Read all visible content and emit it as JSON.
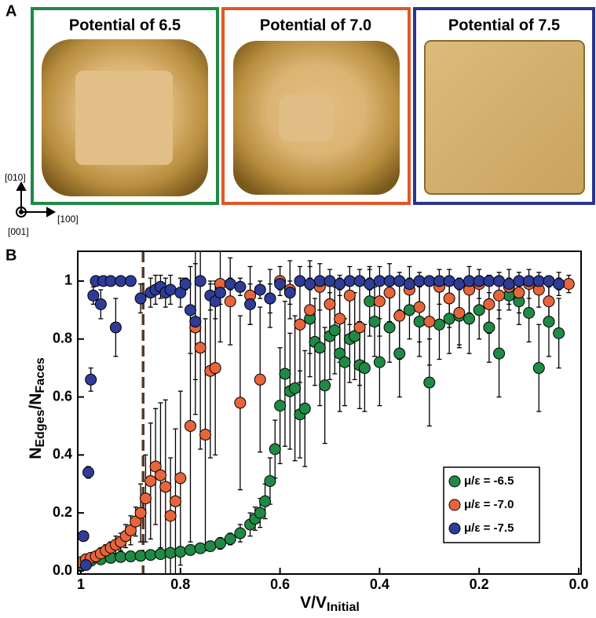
{
  "panel_a": {
    "label": "A",
    "images": [
      {
        "title": "Potential of 6.5"
      },
      {
        "title": "Potential of 7.0"
      },
      {
        "title": "Potential of 7.5"
      }
    ],
    "axis_labels": {
      "up": "[010]",
      "right": "[100]",
      "out": "[001]"
    }
  },
  "panel_b": {
    "label": "B"
  },
  "chart_data": {
    "type": "scatter",
    "xlabel": [
      "V/V",
      "Initial"
    ],
    "ylabel": [
      "N",
      "Edges",
      "/N",
      "Faces"
    ],
    "xlim": [
      1.0,
      0.0
    ],
    "ylim": [
      0,
      1.1
    ],
    "xticks": [
      1,
      0.8,
      0.6,
      0.4,
      0.2,
      {
        "value": 0,
        "label": "0.0"
      }
    ],
    "yticks": [
      {
        "value": 0,
        "label": "0.0"
      },
      0.2,
      0.4,
      0.6,
      0.8,
      1
    ],
    "vline": 0.875,
    "vline_color": "#5a3a28",
    "legend": "lower right",
    "series": [
      {
        "name": "μ/ε = -6.5",
        "color": "#1f8a45",
        "x": [
          1.0,
          0.98,
          0.96,
          0.94,
          0.92,
          0.9,
          0.88,
          0.86,
          0.84,
          0.82,
          0.8,
          0.78,
          0.76,
          0.74,
          0.72,
          0.7,
          0.68,
          0.66,
          0.65,
          0.64,
          0.63,
          0.62,
          0.61,
          0.6,
          0.59,
          0.58,
          0.57,
          0.56,
          0.55,
          0.54,
          0.53,
          0.52,
          0.51,
          0.5,
          0.49,
          0.48,
          0.47,
          0.46,
          0.45,
          0.44,
          0.43,
          0.42,
          0.41,
          0.4,
          0.38,
          0.36,
          0.34,
          0.32,
          0.3,
          0.28,
          0.26,
          0.24,
          0.22,
          0.2,
          0.18,
          0.16,
          0.14,
          0.12,
          0.1,
          0.08,
          0.06,
          0.04
        ],
        "values": [
          0.02,
          0.035,
          0.04,
          0.045,
          0.048,
          0.05,
          0.052,
          0.055,
          0.058,
          0.062,
          0.066,
          0.072,
          0.078,
          0.085,
          0.095,
          0.11,
          0.13,
          0.16,
          0.18,
          0.2,
          0.24,
          0.31,
          0.42,
          0.57,
          0.68,
          0.62,
          0.63,
          0.54,
          0.56,
          0.87,
          0.79,
          0.77,
          0.64,
          0.81,
          0.83,
          0.75,
          0.72,
          0.8,
          0.81,
          0.71,
          0.7,
          0.93,
          0.86,
          0.72,
          0.84,
          0.75,
          0.9,
          0.86,
          0.65,
          0.85,
          0.87,
          0.88,
          0.87,
          0.9,
          0.84,
          0.75,
          0.95,
          0.93,
          0.89,
          0.7,
          0.86,
          0.82
        ],
        "errors": [
          0.01,
          0.01,
          0.01,
          0.01,
          0.01,
          0.01,
          0.01,
          0.01,
          0.01,
          0.01,
          0.01,
          0.01,
          0.01,
          0.01,
          0.02,
          0.02,
          0.03,
          0.04,
          0.04,
          0.05,
          0.06,
          0.08,
          0.1,
          0.2,
          0.25,
          0.2,
          0.25,
          0.15,
          0.2,
          0.2,
          0.15,
          0.2,
          0.2,
          0.15,
          0.15,
          0.2,
          0.15,
          0.15,
          0.15,
          0.15,
          0.15,
          0.12,
          0.12,
          0.15,
          0.12,
          0.15,
          0.1,
          0.12,
          0.15,
          0.12,
          0.12,
          0.1,
          0.12,
          0.1,
          0.12,
          0.15,
          0.05,
          0.08,
          0.1,
          0.15,
          0.12,
          0.12
        ]
      },
      {
        "name": "μ/ε = -7.0",
        "color": "#e8643a",
        "x": [
          1.0,
          0.99,
          0.98,
          0.97,
          0.96,
          0.95,
          0.94,
          0.93,
          0.92,
          0.91,
          0.9,
          0.89,
          0.88,
          0.87,
          0.86,
          0.85,
          0.84,
          0.83,
          0.82,
          0.81,
          0.8,
          0.78,
          0.77,
          0.76,
          0.75,
          0.74,
          0.73,
          0.72,
          0.7,
          0.68,
          0.66,
          0.64,
          0.62,
          0.6,
          0.58,
          0.56,
          0.54,
          0.52,
          0.5,
          0.48,
          0.46,
          0.44,
          0.42,
          0.4,
          0.38,
          0.36,
          0.34,
          0.32,
          0.3,
          0.28,
          0.26,
          0.24,
          0.22,
          0.2,
          0.18,
          0.16,
          0.14,
          0.12,
          0.1,
          0.08,
          0.06,
          0.04,
          0.02
        ],
        "values": [
          0.03,
          0.04,
          0.045,
          0.05,
          0.06,
          0.07,
          0.08,
          0.09,
          0.1,
          0.12,
          0.14,
          0.17,
          0.2,
          0.25,
          0.31,
          0.36,
          0.33,
          0.29,
          0.19,
          0.24,
          0.32,
          0.5,
          0.84,
          0.77,
          0.47,
          0.69,
          0.7,
          0.99,
          0.93,
          0.58,
          0.95,
          0.66,
          0.94,
          1.0,
          0.97,
          0.85,
          0.9,
          0.98,
          0.92,
          0.87,
          0.95,
          0.84,
          0.99,
          0.93,
          0.96,
          0.88,
          0.97,
          0.91,
          0.86,
          0.98,
          0.94,
          0.89,
          0.97,
          0.99,
          0.92,
          0.95,
          0.98,
          0.96,
          0.99,
          0.97,
          0.93,
          0.99,
          0.99
        ],
        "errors": [
          0.01,
          0.01,
          0.01,
          0.01,
          0.02,
          0.02,
          0.02,
          0.03,
          0.03,
          0.04,
          0.05,
          0.05,
          0.1,
          0.15,
          0.2,
          0.2,
          0.25,
          0.3,
          0.2,
          0.25,
          0.3,
          0.4,
          0.3,
          0.35,
          0.4,
          0.3,
          0.3,
          0.2,
          0.15,
          0.3,
          0.1,
          0.25,
          0.1,
          0.05,
          0.1,
          0.2,
          0.15,
          0.08,
          0.12,
          0.15,
          0.1,
          0.2,
          0.05,
          0.12,
          0.1,
          0.15,
          0.08,
          0.12,
          0.15,
          0.06,
          0.1,
          0.12,
          0.08,
          0.05,
          0.1,
          0.08,
          0.06,
          0.07,
          0.05,
          0.06,
          0.08,
          0.04,
          0.03
        ]
      },
      {
        "name": "μ/ε = -7.5",
        "color": "#2e3c98",
        "x": [
          0.995,
          0.99,
          0.985,
          0.98,
          0.975,
          0.97,
          0.96,
          0.955,
          0.94,
          0.93,
          0.92,
          0.9,
          0.88,
          0.86,
          0.85,
          0.84,
          0.83,
          0.82,
          0.8,
          0.79,
          0.78,
          0.77,
          0.76,
          0.74,
          0.73,
          0.72,
          0.7,
          0.68,
          0.66,
          0.64,
          0.62,
          0.6,
          0.58,
          0.56,
          0.54,
          0.52,
          0.5,
          0.48,
          0.46,
          0.44,
          0.42,
          0.4,
          0.38,
          0.36,
          0.34,
          0.32,
          0.3,
          0.28,
          0.26,
          0.24,
          0.22,
          0.2,
          0.18,
          0.16,
          0.14,
          0.12,
          0.1,
          0.08,
          0.06,
          0.04
        ],
        "values": [
          0.12,
          0.02,
          0.34,
          0.66,
          0.95,
          1.0,
          0.92,
          1.0,
          1.0,
          0.84,
          1.0,
          1.0,
          0.94,
          0.96,
          0.97,
          0.98,
          0.96,
          0.97,
          0.96,
          0.99,
          0.9,
          0.86,
          1.0,
          0.95,
          0.93,
          0.96,
          0.99,
          0.98,
          0.92,
          0.97,
          0.94,
          0.99,
          0.96,
          1.0,
          0.99,
          1.0,
          1.0,
          0.99,
          1.0,
          1.0,
          0.99,
          1.0,
          1.0,
          1.0,
          0.99,
          1.0,
          1.0,
          1.0,
          1.0,
          0.99,
          1.0,
          1.0,
          1.0,
          1.0,
          0.99,
          1.0,
          1.0,
          1.0,
          1.0,
          0.99
        ],
        "errors": [
          0.01,
          0.01,
          0.02,
          0.04,
          0.03,
          0.01,
          0.05,
          0.01,
          0.01,
          0.1,
          0.01,
          0.01,
          0.05,
          0.05,
          0.05,
          0.04,
          0.05,
          0.05,
          0.05,
          0.02,
          0.15,
          0.2,
          0.01,
          0.05,
          0.06,
          0.04,
          0.02,
          0.03,
          0.07,
          0.03,
          0.05,
          0.02,
          0.04,
          0.01,
          0.02,
          0.01,
          0.01,
          0.02,
          0.01,
          0.01,
          0.02,
          0.01,
          0.01,
          0.01,
          0.02,
          0.01,
          0.01,
          0.01,
          0.01,
          0.02,
          0.01,
          0.01,
          0.01,
          0.01,
          0.02,
          0.01,
          0.01,
          0.01,
          0.01,
          0.02
        ]
      }
    ]
  }
}
